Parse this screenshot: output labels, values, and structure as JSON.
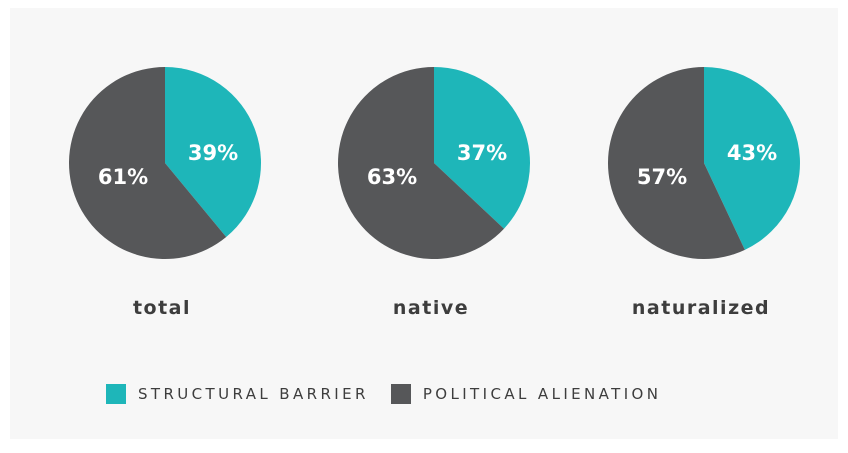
{
  "chart_data": {
    "type": "pie",
    "charts": [
      {
        "category": "total",
        "slices": [
          {
            "series": "STRUCTURAL BARRIER",
            "value": 39,
            "label": "39%"
          },
          {
            "series": "POLITICAL ALIENATION",
            "value": 61,
            "label": "61%"
          }
        ]
      },
      {
        "category": "native",
        "slices": [
          {
            "series": "STRUCTURAL BARRIER",
            "value": 37,
            "label": "37%"
          },
          {
            "series": "POLITICAL ALIENATION",
            "value": 63,
            "label": "63%"
          }
        ]
      },
      {
        "category": "naturalized",
        "slices": [
          {
            "series": "STRUCTURAL BARRIER",
            "value": 43,
            "label": "43%"
          },
          {
            "series": "POLITICAL ALIENATION",
            "value": 57,
            "label": "57%"
          }
        ]
      }
    ],
    "legend": {
      "position": "bottom",
      "entries": [
        {
          "label": "STRUCTURAL BARRIER",
          "color": "#1eb6b9"
        },
        {
          "label": "POLITICAL ALIENATION",
          "color": "#565759"
        }
      ]
    },
    "colors": {
      "structural": "#1eb6b9",
      "political": "#565759"
    }
  }
}
